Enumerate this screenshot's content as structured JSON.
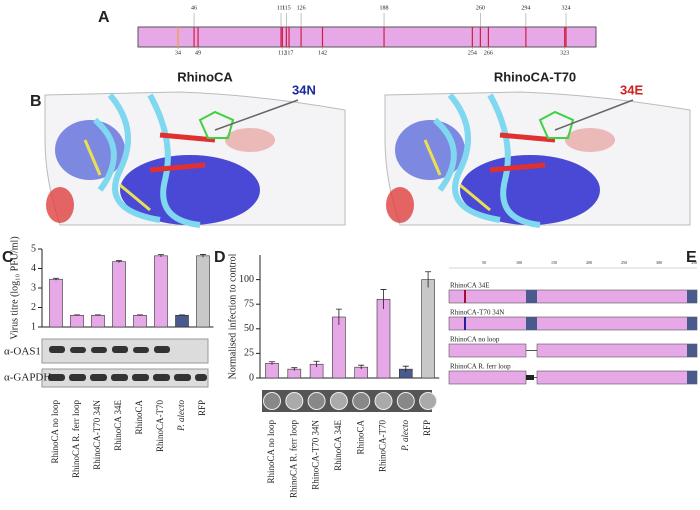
{
  "panel_labels": [
    "A",
    "B",
    "C",
    "D",
    "E"
  ],
  "panel_a": {
    "top_positions": [
      46,
      111,
      115,
      126,
      188,
      260,
      294,
      324
    ],
    "bottom_positions": [
      34,
      49,
      112,
      117,
      142,
      254,
      266,
      323
    ]
  },
  "panel_b": {
    "left_title": "RhinoCA",
    "left_residue": "34N",
    "right_title": "RhinoCA-T70",
    "right_residue": "34E"
  },
  "blot_labels": [
    "α-OAS1",
    "α-GAPDH"
  ],
  "chart_data": [
    {
      "type": "bar",
      "y_label": "Virus titre (log₁₀ PFU/ml)",
      "categories": [
        "RhinoCA no loop",
        "RhinoCA R. ferr loop",
        "RhinoCA-T70 34N",
        "RhinoCA 34E",
        "RhinoCA",
        "RhinoCA-T70",
        "P. alecto",
        "RFP"
      ],
      "values": [
        3.45,
        1.6,
        1.6,
        4.35,
        1.6,
        4.65,
        1.6,
        4.65
      ],
      "errors": [
        0.05,
        0.02,
        0.02,
        0.05,
        0.02,
        0.06,
        0.02,
        0.07
      ],
      "colors": [
        "#e6a8e6",
        "#e6a8e6",
        "#e6a8e6",
        "#e6a8e6",
        "#e6a8e6",
        "#e6a8e6",
        "#4a5a8c",
        "#c8c8c8"
      ],
      "ylim": [
        1,
        5
      ],
      "yticks": [
        1,
        2,
        3,
        4,
        5
      ]
    },
    {
      "type": "bar",
      "y_label": "Normalised infection to control",
      "categories": [
        "RhinoCA no loop",
        "RhinoCA R. ferr loop",
        "RhinoCA-T70 34N",
        "RhinoCA 34E",
        "RhinoCA",
        "RhinoCA-T70",
        "P. alecto",
        "RFP"
      ],
      "values": [
        15,
        9,
        14,
        62,
        11,
        80,
        9,
        100
      ],
      "errors": [
        1.5,
        1.5,
        3,
        8,
        2,
        10,
        3,
        8
      ],
      "colors": [
        "#e6a8e6",
        "#e6a8e6",
        "#e6a8e6",
        "#e6a8e6",
        "#e6a8e6",
        "#e6a8e6",
        "#4a5a8c",
        "#c8c8c8"
      ],
      "ylim": [
        0,
        125
      ],
      "yticks": [
        0,
        25,
        50,
        75,
        100
      ]
    }
  ],
  "panel_e": {
    "ticks": [
      50,
      100,
      150,
      200,
      250,
      300,
      350
    ],
    "constructs": [
      "RhinoCA 34E",
      "RhinoCA-T70 34N",
      "RhinoCA no loop",
      "RhinoCA R. ferr loop"
    ]
  }
}
